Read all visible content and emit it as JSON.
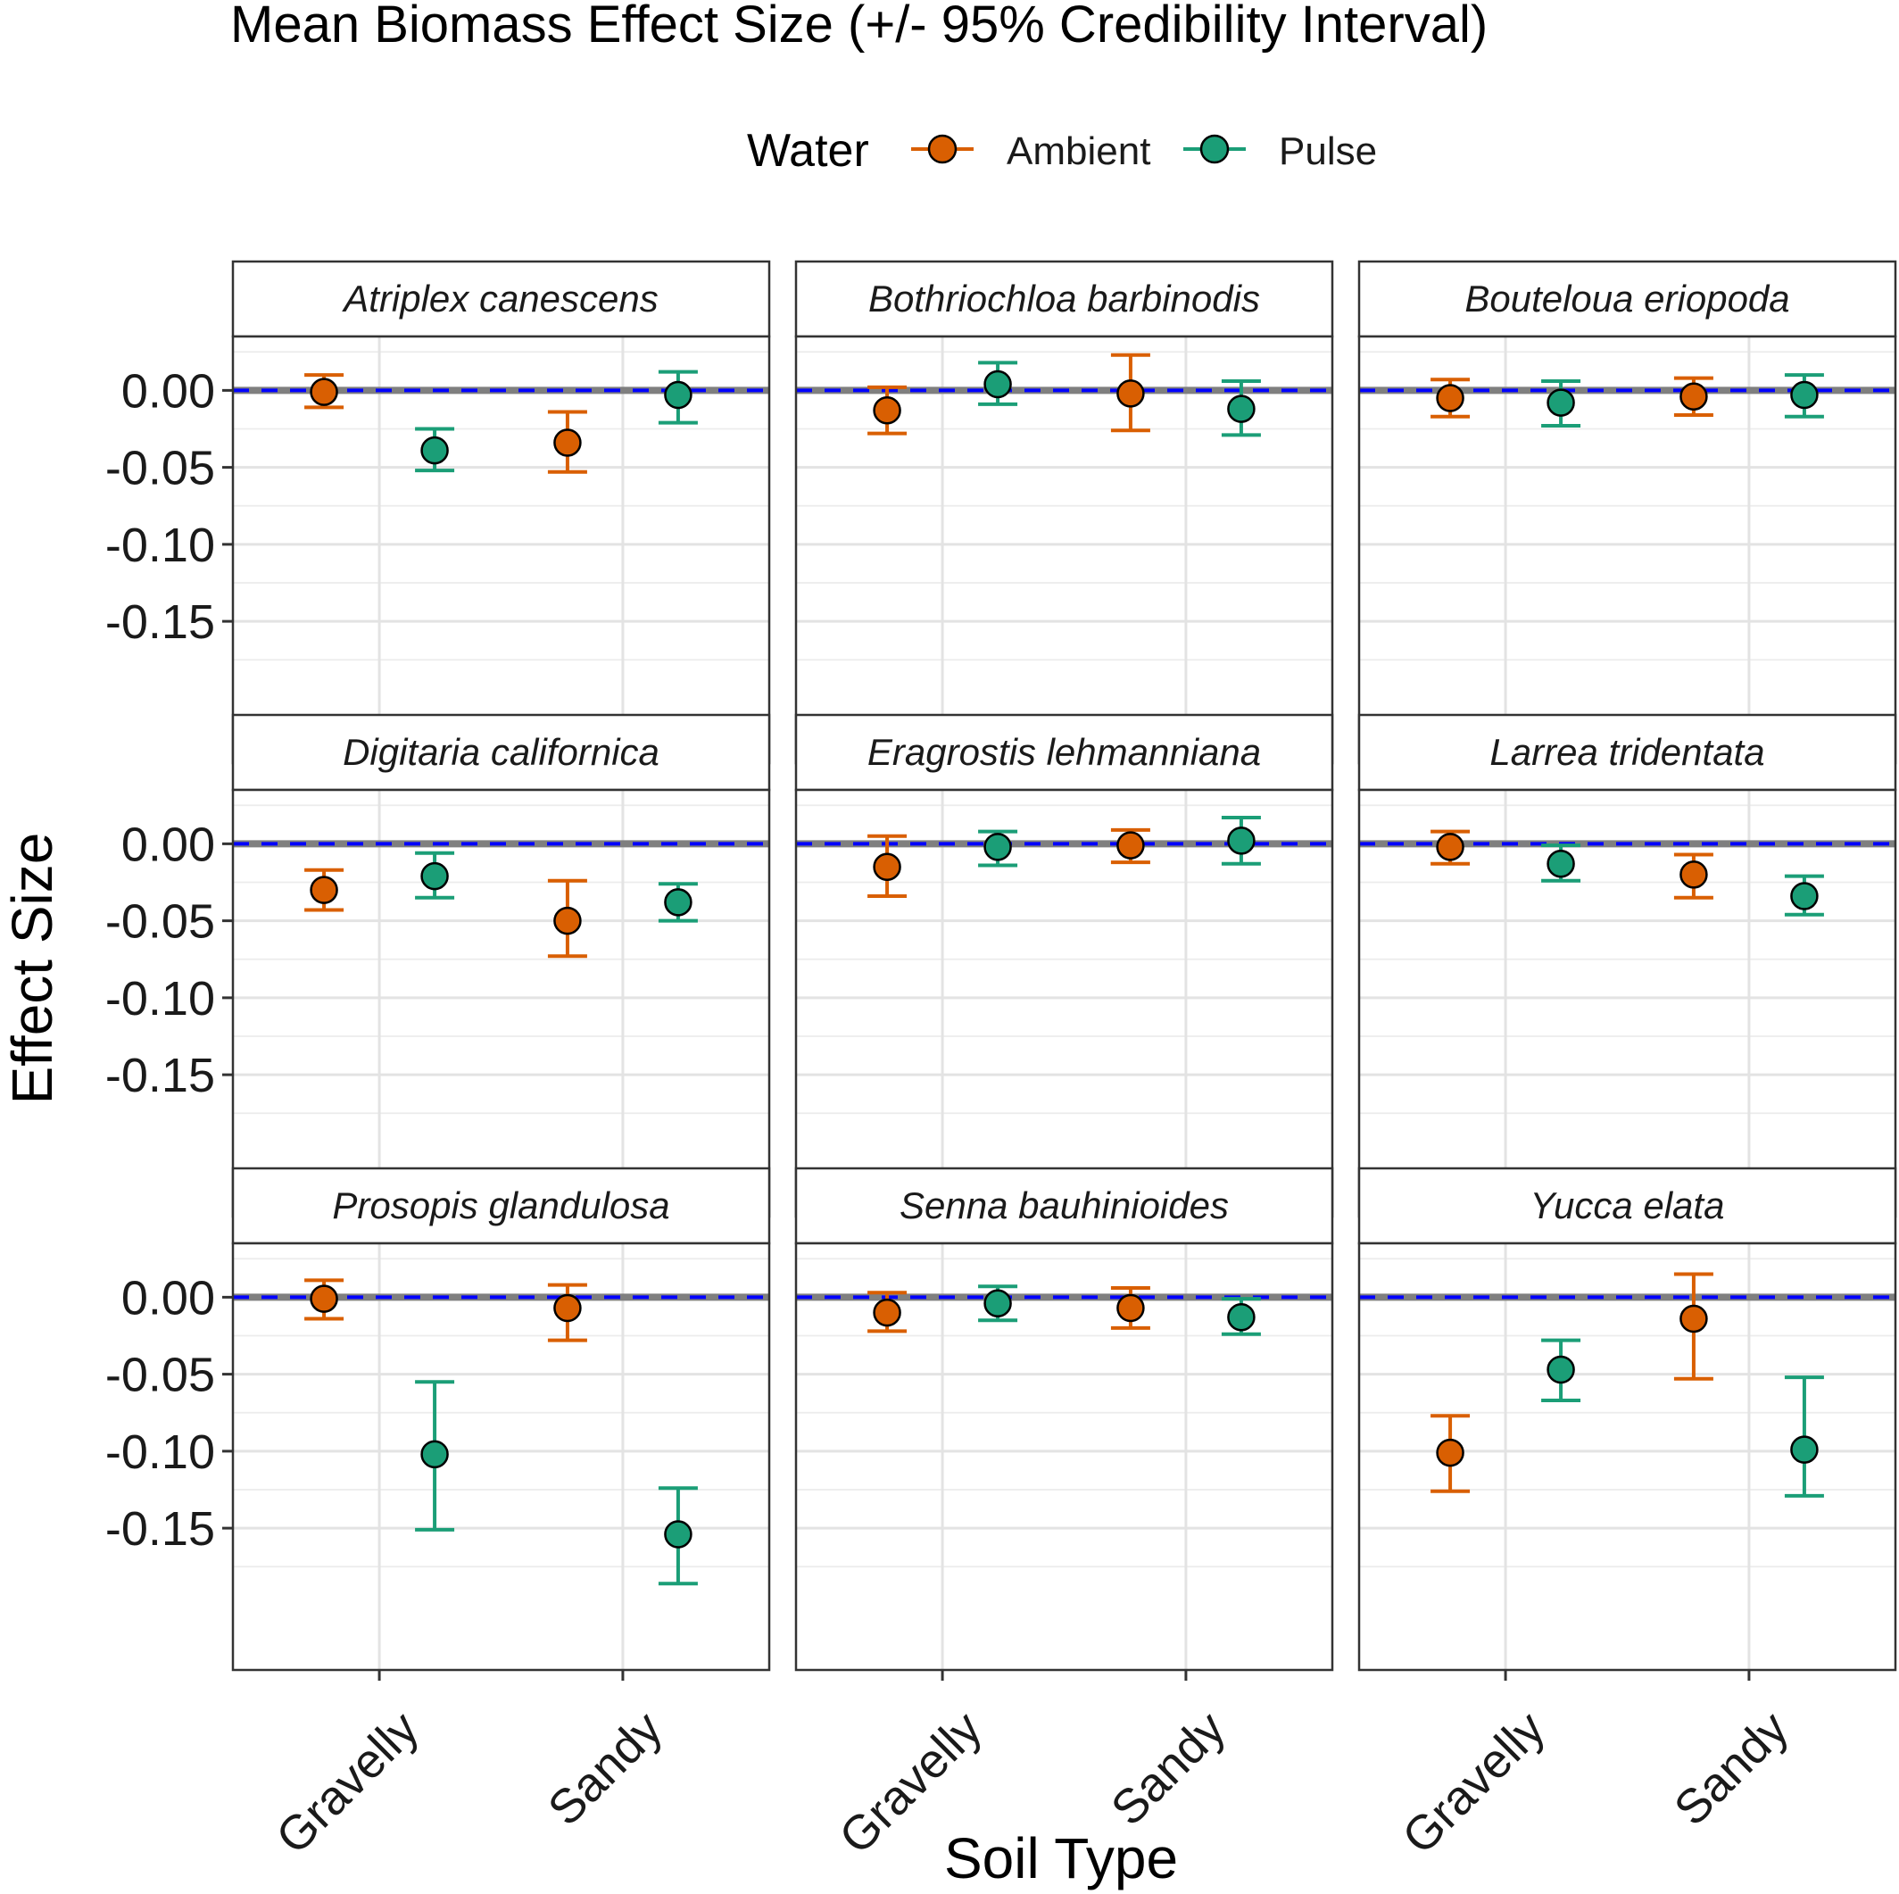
{
  "chart_data": {
    "type": "scatter",
    "title": "Mean Biomass Effect Size (+/- 95% Credibility Interval)",
    "xlabel": "Soil Type",
    "ylabel": "Effect Size",
    "categories": [
      "Gravelly",
      "Sandy"
    ],
    "ylim": [
      -0.195,
      0.035
    ],
    "yticks": [
      0.0,
      -0.05,
      -0.1,
      -0.15
    ],
    "ytick_labels": [
      "0.00",
      "-0.05",
      "-0.10",
      "-0.15"
    ],
    "grid": true,
    "reference_line": {
      "y": 0,
      "style": "dashed",
      "color": "#0000ff"
    },
    "legend": {
      "title": "Water",
      "position": "top",
      "entries": [
        {
          "name": "Ambient",
          "color": "#d95f02"
        },
        {
          "name": "Pulse",
          "color": "#1b9e77"
        }
      ]
    },
    "colors": {
      "Ambient": "#d95f02",
      "Pulse": "#1b9e77",
      "reference": "#0000ff",
      "zero_band": "#7f7f7f"
    },
    "panels": [
      {
        "species": "Atriplex canescens",
        "series": [
          {
            "name": "Ambient",
            "values": [
              -0.001,
              -0.034
            ],
            "lower": [
              -0.011,
              -0.053
            ],
            "upper": [
              0.01,
              -0.014
            ]
          },
          {
            "name": "Pulse",
            "values": [
              -0.039,
              -0.003
            ],
            "lower": [
              -0.052,
              -0.021
            ],
            "upper": [
              -0.025,
              0.012
            ]
          }
        ]
      },
      {
        "species": "Bothriochloa barbinodis",
        "series": [
          {
            "name": "Ambient",
            "values": [
              -0.013,
              -0.002
            ],
            "lower": [
              -0.028,
              -0.026
            ],
            "upper": [
              0.002,
              0.023
            ]
          },
          {
            "name": "Pulse",
            "values": [
              0.004,
              -0.012
            ],
            "lower": [
              -0.009,
              -0.029
            ],
            "upper": [
              0.018,
              0.006
            ]
          }
        ]
      },
      {
        "species": "Bouteloua eriopoda",
        "series": [
          {
            "name": "Ambient",
            "values": [
              -0.005,
              -0.004
            ],
            "lower": [
              -0.017,
              -0.016
            ],
            "upper": [
              0.007,
              0.008
            ]
          },
          {
            "name": "Pulse",
            "values": [
              -0.008,
              -0.003
            ],
            "lower": [
              -0.023,
              -0.017
            ],
            "upper": [
              0.006,
              0.01
            ]
          }
        ]
      },
      {
        "species": "Digitaria californica",
        "series": [
          {
            "name": "Ambient",
            "values": [
              -0.03,
              -0.05
            ],
            "lower": [
              -0.043,
              -0.073
            ],
            "upper": [
              -0.017,
              -0.024
            ]
          },
          {
            "name": "Pulse",
            "values": [
              -0.021,
              -0.038
            ],
            "lower": [
              -0.035,
              -0.05
            ],
            "upper": [
              -0.006,
              -0.026
            ]
          }
        ]
      },
      {
        "species": "Eragrostis lehmanniana",
        "series": [
          {
            "name": "Ambient",
            "values": [
              -0.015,
              -0.001
            ],
            "lower": [
              -0.034,
              -0.012
            ],
            "upper": [
              0.005,
              0.009
            ]
          },
          {
            "name": "Pulse",
            "values": [
              -0.002,
              0.002
            ],
            "lower": [
              -0.014,
              -0.013
            ],
            "upper": [
              0.008,
              0.017
            ]
          }
        ]
      },
      {
        "species": "Larrea tridentata",
        "series": [
          {
            "name": "Ambient",
            "values": [
              -0.002,
              -0.02
            ],
            "lower": [
              -0.013,
              -0.035
            ],
            "upper": [
              0.008,
              -0.007
            ]
          },
          {
            "name": "Pulse",
            "values": [
              -0.013,
              -0.034
            ],
            "lower": [
              -0.024,
              -0.046
            ],
            "upper": [
              -0.001,
              -0.021
            ]
          }
        ]
      },
      {
        "species": "Prosopis glandulosa",
        "series": [
          {
            "name": "Ambient",
            "values": [
              -0.001,
              -0.007
            ],
            "lower": [
              -0.014,
              -0.028
            ],
            "upper": [
              0.011,
              0.008
            ]
          },
          {
            "name": "Pulse",
            "values": [
              -0.102,
              -0.154
            ],
            "lower": [
              -0.151,
              -0.186
            ],
            "upper": [
              -0.055,
              -0.124
            ]
          }
        ]
      },
      {
        "species": "Senna bauhinioides",
        "series": [
          {
            "name": "Ambient",
            "values": [
              -0.01,
              -0.007
            ],
            "lower": [
              -0.022,
              -0.02
            ],
            "upper": [
              0.003,
              0.006
            ]
          },
          {
            "name": "Pulse",
            "values": [
              -0.004,
              -0.013
            ],
            "lower": [
              -0.015,
              -0.024
            ],
            "upper": [
              0.007,
              -0.001
            ]
          }
        ]
      },
      {
        "species": "Yucca elata",
        "series": [
          {
            "name": "Ambient",
            "values": [
              -0.101,
              -0.014
            ],
            "lower": [
              -0.126,
              -0.053
            ],
            "upper": [
              -0.077,
              0.015
            ]
          },
          {
            "name": "Pulse",
            "values": [
              -0.047,
              -0.099
            ],
            "lower": [
              -0.067,
              -0.129
            ],
            "upper": [
              -0.028,
              -0.052
            ]
          }
        ]
      }
    ]
  }
}
